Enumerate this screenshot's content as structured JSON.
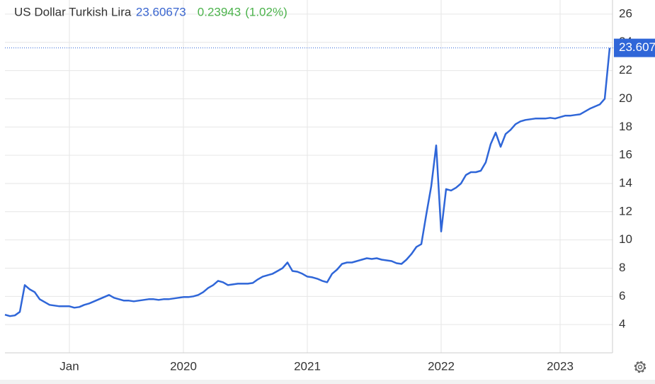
{
  "header": {
    "name": "US Dollar Turkish Lira",
    "price": "23.60673",
    "change": "0.23943",
    "change_pct": "(1.02%)"
  },
  "chart_data": {
    "type": "line",
    "color": "#2f66d8",
    "grid": true,
    "categories": [
      null,
      null,
      null,
      null,
      null,
      null,
      null,
      null,
      null,
      null,
      null,
      null,
      null,
      "Jan",
      null,
      null,
      null,
      null,
      null,
      null,
      null,
      null,
      null,
      null,
      null,
      null,
      null,
      null,
      null,
      null,
      null,
      null,
      null,
      null,
      null,
      null,
      "2020",
      null,
      null,
      null,
      null,
      null,
      null,
      null,
      null,
      null,
      null,
      null,
      null,
      null,
      null,
      null,
      null,
      null,
      null,
      null,
      null,
      null,
      null,
      null,
      null,
      "2021",
      null,
      null,
      null,
      null,
      null,
      null,
      null,
      null,
      null,
      null,
      null,
      null,
      null,
      null,
      null,
      null,
      null,
      null,
      null,
      null,
      null,
      null,
      null,
      null,
      null,
      null,
      "2022",
      null,
      null,
      null,
      null,
      null,
      null,
      null,
      null,
      null,
      null,
      null,
      null,
      null,
      null,
      null,
      null,
      null,
      null,
      null,
      null,
      null,
      null,
      null,
      "2023",
      null,
      null,
      null,
      null,
      null,
      null,
      null,
      null,
      null,
      null
    ],
    "values": [
      4.7,
      4.6,
      4.65,
      4.9,
      6.8,
      6.5,
      6.3,
      5.8,
      5.6,
      5.4,
      5.35,
      5.3,
      5.3,
      5.3,
      5.2,
      5.25,
      5.4,
      5.5,
      5.65,
      5.8,
      5.95,
      6.1,
      5.9,
      5.8,
      5.7,
      5.7,
      5.65,
      5.7,
      5.75,
      5.8,
      5.8,
      5.75,
      5.8,
      5.8,
      5.85,
      5.9,
      5.95,
      5.95,
      6.0,
      6.1,
      6.3,
      6.6,
      6.8,
      7.1,
      7.0,
      6.8,
      6.85,
      6.9,
      6.9,
      6.9,
      6.95,
      7.2,
      7.4,
      7.5,
      7.6,
      7.8,
      8.0,
      8.4,
      7.8,
      7.75,
      7.6,
      7.4,
      7.35,
      7.25,
      7.1,
      7.0,
      7.6,
      7.9,
      8.3,
      8.4,
      8.4,
      8.5,
      8.6,
      8.7,
      8.65,
      8.7,
      8.6,
      8.55,
      8.5,
      8.35,
      8.3,
      8.6,
      9.0,
      9.5,
      9.7,
      11.8,
      13.8,
      16.7,
      10.6,
      13.6,
      13.5,
      13.7,
      14.0,
      14.6,
      14.8,
      14.8,
      14.9,
      15.5,
      16.8,
      17.6,
      16.6,
      17.5,
      17.8,
      18.2,
      18.4,
      18.5,
      18.55,
      18.6,
      18.6,
      18.6,
      18.65,
      18.6,
      18.7,
      18.8,
      18.8,
      18.85,
      18.9,
      19.1,
      19.3,
      19.45,
      19.6,
      20.0,
      23.60673
    ],
    "last_label": "23.607",
    "ylim": [
      2,
      27
    ],
    "yticks": [
      4,
      6,
      8,
      10,
      12,
      14,
      16,
      18,
      20,
      22,
      24,
      26
    ]
  }
}
